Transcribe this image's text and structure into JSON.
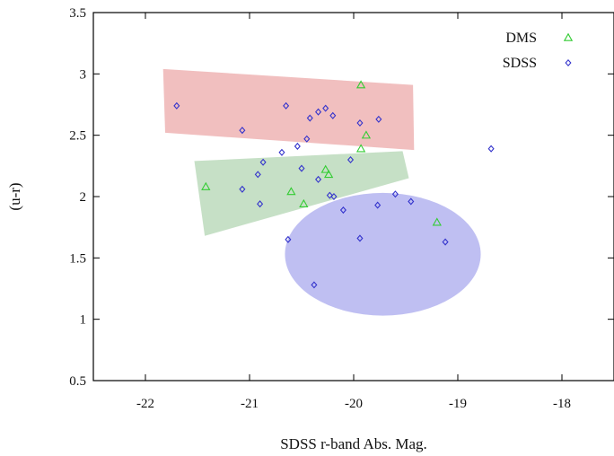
{
  "chart_data": {
    "type": "scatter",
    "title": "",
    "xlabel": "SDSS r-band Abs. Mag.",
    "ylabel": "(u-r)",
    "xlim": [
      -22.5,
      -17.5
    ],
    "ylim": [
      0.5,
      3.5
    ],
    "x_ticks": [
      -22,
      -21,
      -20,
      -19,
      -18
    ],
    "x_tick_labels": [
      "-22",
      "-21",
      "-20",
      "-19",
      "-18"
    ],
    "y_ticks": [
      0.5,
      1,
      1.5,
      2,
      2.5,
      3,
      3.5
    ],
    "y_tick_labels": [
      "0.5",
      "1",
      "1.5",
      "2",
      "2.5",
      "3",
      "3.5"
    ],
    "grid": false,
    "legend_position": "top-right",
    "series": [
      {
        "name": "DMS",
        "marker": "triangle",
        "color": "#33cc33",
        "points": [
          [
            -19.93,
            2.91
          ],
          [
            -19.88,
            2.5
          ],
          [
            -19.93,
            2.39
          ],
          [
            -20.27,
            2.22
          ],
          [
            -20.24,
            2.18
          ],
          [
            -21.42,
            2.08
          ],
          [
            -20.6,
            2.04
          ],
          [
            -20.48,
            1.94
          ],
          [
            -19.2,
            1.79
          ]
        ]
      },
      {
        "name": "SDSS",
        "marker": "diamond",
        "color": "#3333cc",
        "points": [
          [
            -21.7,
            2.74
          ],
          [
            -20.65,
            2.74
          ],
          [
            -20.27,
            2.72
          ],
          [
            -20.34,
            2.69
          ],
          [
            -20.2,
            2.66
          ],
          [
            -20.42,
            2.64
          ],
          [
            -19.76,
            2.63
          ],
          [
            -19.94,
            2.6
          ],
          [
            -21.07,
            2.54
          ],
          [
            -20.45,
            2.47
          ],
          [
            -20.54,
            2.41
          ],
          [
            -18.68,
            2.39
          ],
          [
            -20.69,
            2.36
          ],
          [
            -20.03,
            2.3
          ],
          [
            -20.87,
            2.28
          ],
          [
            -20.5,
            2.23
          ],
          [
            -20.34,
            2.14
          ],
          [
            -20.92,
            2.18
          ],
          [
            -21.07,
            2.06
          ],
          [
            -20.23,
            2.01
          ],
          [
            -20.19,
            2.0
          ],
          [
            -19.6,
            2.02
          ],
          [
            -19.45,
            1.96
          ],
          [
            -20.9,
            1.94
          ],
          [
            -19.77,
            1.93
          ],
          [
            -20.1,
            1.89
          ],
          [
            -20.63,
            1.65
          ],
          [
            -19.94,
            1.66
          ],
          [
            -19.12,
            1.63
          ],
          [
            -20.38,
            1.28
          ]
        ]
      }
    ],
    "regions": [
      {
        "shape": "polygon",
        "color": "#e07070",
        "opacity": 0.45,
        "vertices": [
          [
            -21.83,
            3.04
          ],
          [
            -19.43,
            2.91
          ],
          [
            -19.42,
            2.38
          ],
          [
            -21.81,
            2.52
          ]
        ]
      },
      {
        "shape": "polygon",
        "color": "#80bb80",
        "opacity": 0.45,
        "vertices": [
          [
            -21.53,
            2.29
          ],
          [
            -19.53,
            2.37
          ],
          [
            -19.47,
            2.15
          ],
          [
            -21.43,
            1.68
          ]
        ]
      },
      {
        "shape": "ellipse",
        "color": "#8080e6",
        "opacity": 0.5,
        "center": [
          -19.72,
          1.53
        ],
        "radii": [
          0.94,
          0.5
        ]
      }
    ]
  }
}
